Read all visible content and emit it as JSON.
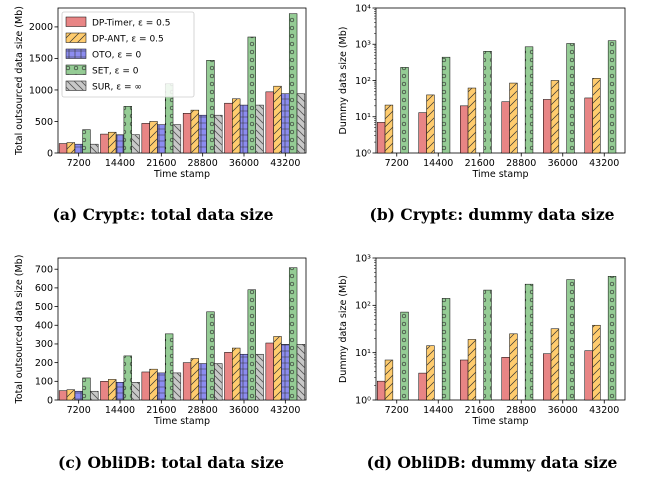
{
  "chart_data": [
    {
      "type": "bar",
      "caption": "(a) Cryptε: total data size",
      "xlabel": "Time stamp",
      "ylabel": "Total outsourced data size (Mb)",
      "yscale": "linear",
      "ylim": [
        0,
        2300
      ],
      "yticks": [
        0,
        500,
        1000,
        1500,
        2000
      ],
      "ytick_labels": [
        "0",
        "500",
        "1000",
        "1500",
        "2000"
      ],
      "categories": [
        "7200",
        "14400",
        "21600",
        "28800",
        "36000",
        "43200"
      ],
      "legend": "top-left",
      "series": [
        {
          "name": "DP-Timer, ε = 0.5",
          "values": [
            150,
            300,
            470,
            630,
            790,
            970
          ]
        },
        {
          "name": "DP-ANT, ε = 0.5",
          "values": [
            165,
            330,
            500,
            680,
            860,
            1060
          ]
        },
        {
          "name": "OTO, ε = 0",
          "values": [
            140,
            290,
            450,
            600,
            760,
            940
          ]
        },
        {
          "name": "SET, ε = 0",
          "values": [
            370,
            740,
            1100,
            1470,
            1840,
            2210
          ]
        },
        {
          "name": "SUR, ε = ∞",
          "values": [
            140,
            290,
            450,
            600,
            760,
            940
          ]
        }
      ]
    },
    {
      "type": "bar",
      "caption": "(b) Cryptε: dummy data size",
      "xlabel": "Time stamp",
      "ylabel": "Dummy data size (Mb)",
      "yscale": "log",
      "ylim": [
        1,
        10000
      ],
      "yticks": [
        1,
        10,
        100,
        1000,
        10000
      ],
      "ytick_labels": [
        "10⁰",
        "10¹",
        "10²",
        "10³",
        "10⁴"
      ],
      "categories": [
        "7200",
        "14400",
        "21600",
        "28800",
        "36000",
        "43200"
      ],
      "series": [
        {
          "name": "DP-Timer, ε = 0.5",
          "values": [
            7,
            13,
            20,
            26,
            30,
            33
          ]
        },
        {
          "name": "DP-ANT, ε = 0.5",
          "values": [
            21,
            40,
            62,
            85,
            100,
            115
          ]
        },
        {
          "name": "OTO, ε = 0",
          "values": [
            0,
            0,
            0,
            0,
            0,
            0
          ]
        },
        {
          "name": "SET, ε = 0",
          "values": [
            230,
            440,
            640,
            850,
            1050,
            1250
          ]
        },
        {
          "name": "SUR, ε = ∞",
          "values": [
            0,
            0,
            0,
            0,
            0,
            0
          ]
        }
      ]
    },
    {
      "type": "bar",
      "caption": "(c) ObliDB: total data size",
      "xlabel": "Time stamp",
      "ylabel": "Total outsourced data size (Mb)",
      "yscale": "linear",
      "ylim": [
        0,
        760
      ],
      "yticks": [
        0,
        100,
        200,
        300,
        400,
        500,
        600,
        700
      ],
      "ytick_labels": [
        "0",
        "100",
        "200",
        "300",
        "400",
        "500",
        "600",
        "700"
      ],
      "categories": [
        "7200",
        "14400",
        "21600",
        "28800",
        "36000",
        "43200"
      ],
      "series": [
        {
          "name": "DP-Timer, ε = 0.5",
          "values": [
            50,
            100,
            150,
            200,
            255,
            305
          ]
        },
        {
          "name": "DP-ANT, ε = 0.5",
          "values": [
            55,
            110,
            165,
            222,
            278,
            340
          ]
        },
        {
          "name": "OTO, ε = 0",
          "values": [
            47,
            95,
            145,
            195,
            245,
            298
          ]
        },
        {
          "name": "SET, ε = 0",
          "values": [
            118,
            236,
            354,
            472,
            590,
            708
          ]
        },
        {
          "name": "SUR, ε = ∞",
          "values": [
            47,
            95,
            145,
            195,
            245,
            298
          ]
        }
      ]
    },
    {
      "type": "bar",
      "caption": "(d) ObliDB: dummy data size",
      "xlabel": "Time stamp",
      "ylabel": "Dummy data size (Mb)",
      "yscale": "log",
      "ylim": [
        1,
        1000
      ],
      "yticks": [
        1,
        10,
        100,
        1000
      ],
      "ytick_labels": [
        "10⁰",
        "10¹",
        "10²",
        "10³"
      ],
      "categories": [
        "7200",
        "14400",
        "21600",
        "28800",
        "36000",
        "43200"
      ],
      "series": [
        {
          "name": "DP-Timer, ε = 0.5",
          "values": [
            2.5,
            3.7,
            7,
            8,
            9.5,
            11
          ]
        },
        {
          "name": "DP-ANT, ε = 0.5",
          "values": [
            7,
            14,
            19,
            25,
            32,
            38
          ]
        },
        {
          "name": "OTO, ε = 0",
          "values": [
            0,
            0,
            0,
            0,
            0,
            0
          ]
        },
        {
          "name": "SET, ε = 0",
          "values": [
            72,
            140,
            210,
            280,
            350,
            410
          ]
        },
        {
          "name": "SUR, ε = ∞",
          "values": [
            0,
            0,
            0,
            0,
            0,
            0
          ]
        }
      ]
    }
  ],
  "series_colors": [
    "#e88585",
    "#ffcc6e",
    "#8c8cf0",
    "#95cc95",
    "#c8c8c8"
  ],
  "series_hatches": [
    "none",
    "forward-slash",
    "cross",
    "circles",
    "back-slash"
  ]
}
